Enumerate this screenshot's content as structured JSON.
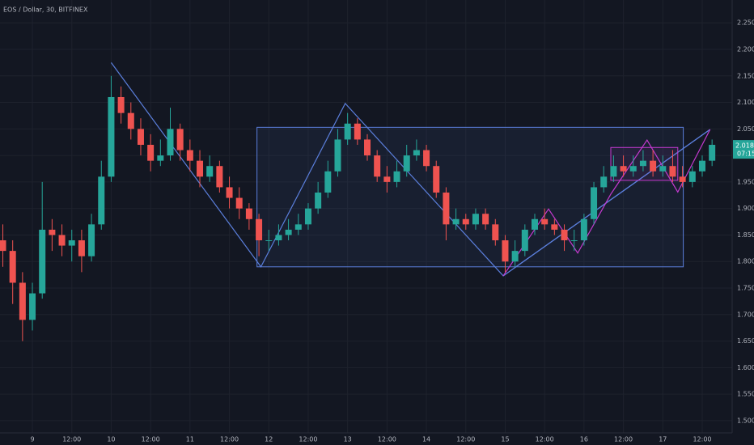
{
  "chart_data": {
    "type": "candlestick",
    "title": "EOS / Dollar, 30, BITFINEX",
    "x": [
      8.625,
      8.75,
      8.875,
      9.0,
      9.125,
      9.25,
      9.375,
      9.5,
      9.625,
      9.75,
      9.875,
      10.0,
      10.125,
      10.25,
      10.375,
      10.5,
      10.625,
      10.75,
      10.875,
      11.0,
      11.125,
      11.25,
      11.375,
      11.5,
      11.625,
      11.75,
      11.875,
      12.0,
      12.125,
      12.25,
      12.375,
      12.5,
      12.625,
      12.75,
      12.875,
      13.0,
      13.125,
      13.25,
      13.375,
      13.5,
      13.625,
      13.75,
      13.875,
      14.0,
      14.125,
      14.25,
      14.375,
      14.5,
      14.625,
      14.75,
      14.875,
      15.0,
      15.125,
      15.25,
      15.375,
      15.5,
      15.625,
      15.75,
      15.875,
      16.0,
      16.125,
      16.25,
      16.375,
      16.5,
      16.625,
      16.75,
      16.875,
      17.0,
      17.125,
      17.25,
      17.375,
      17.5,
      17.625
    ],
    "open": [
      1.84,
      1.82,
      1.76,
      1.69,
      1.74,
      1.86,
      1.85,
      1.83,
      1.84,
      1.81,
      1.87,
      1.96,
      2.11,
      2.08,
      2.05,
      2.02,
      1.99,
      2.0,
      2.05,
      2.01,
      1.99,
      1.96,
      1.98,
      1.94,
      1.92,
      1.9,
      1.88,
      1.84,
      1.84,
      1.85,
      1.86,
      1.87,
      1.9,
      1.93,
      1.97,
      2.03,
      2.06,
      2.03,
      2.0,
      1.96,
      1.95,
      1.97,
      2.0,
      2.01,
      1.98,
      1.93,
      1.87,
      1.88,
      1.87,
      1.89,
      1.87,
      1.84,
      1.8,
      1.82,
      1.86,
      1.88,
      1.87,
      1.86,
      1.84,
      1.84,
      1.88,
      1.94,
      1.96,
      1.98,
      1.97,
      1.98,
      1.99,
      1.97,
      1.98,
      1.96,
      1.95,
      1.97,
      1.99
    ],
    "high": [
      1.87,
      1.84,
      1.78,
      1.76,
      1.95,
      1.88,
      1.87,
      1.86,
      1.86,
      1.89,
      1.99,
      2.15,
      2.13,
      2.1,
      2.07,
      2.04,
      2.03,
      2.09,
      2.06,
      2.03,
      2.01,
      2.0,
      1.99,
      1.96,
      1.94,
      1.91,
      1.89,
      1.86,
      1.87,
      1.88,
      1.89,
      1.91,
      1.95,
      1.99,
      2.05,
      2.08,
      2.07,
      2.04,
      2.01,
      1.98,
      1.99,
      2.02,
      2.03,
      2.02,
      1.99,
      1.94,
      1.9,
      1.89,
      1.9,
      1.9,
      1.88,
      1.85,
      1.84,
      1.87,
      1.89,
      1.9,
      1.88,
      1.87,
      1.86,
      1.89,
      1.95,
      1.98,
      2.0,
      2.0,
      2.0,
      2.01,
      2.01,
      2.0,
      2.01,
      1.98,
      1.98,
      2.0,
      2.03
    ],
    "low": [
      1.79,
      1.72,
      1.65,
      1.67,
      1.73,
      1.82,
      1.81,
      1.8,
      1.78,
      1.8,
      1.86,
      1.95,
      2.06,
      2.03,
      2.0,
      1.97,
      1.98,
      1.99,
      1.99,
      1.97,
      1.94,
      1.95,
      1.93,
      1.9,
      1.88,
      1.86,
      1.81,
      1.82,
      1.83,
      1.84,
      1.85,
      1.86,
      1.89,
      1.92,
      1.96,
      2.02,
      2.02,
      1.99,
      1.95,
      1.93,
      1.94,
      1.96,
      1.99,
      1.97,
      1.92,
      1.84,
      1.86,
      1.86,
      1.86,
      1.86,
      1.83,
      1.78,
      1.79,
      1.81,
      1.85,
      1.86,
      1.85,
      1.82,
      1.82,
      1.83,
      1.87,
      1.93,
      1.95,
      1.96,
      1.96,
      1.97,
      1.96,
      1.96,
      1.95,
      1.94,
      1.94,
      1.96,
      1.98
    ],
    "close": [
      1.82,
      1.76,
      1.69,
      1.74,
      1.86,
      1.85,
      1.83,
      1.84,
      1.81,
      1.87,
      1.96,
      2.11,
      2.08,
      2.05,
      2.02,
      1.99,
      2.0,
      2.05,
      2.01,
      1.99,
      1.96,
      1.98,
      1.94,
      1.92,
      1.9,
      1.88,
      1.84,
      1.84,
      1.85,
      1.86,
      1.87,
      1.9,
      1.93,
      1.97,
      2.03,
      2.06,
      2.03,
      2.0,
      1.96,
      1.95,
      1.97,
      2.0,
      2.01,
      1.98,
      1.93,
      1.87,
      1.88,
      1.87,
      1.89,
      1.87,
      1.84,
      1.8,
      1.82,
      1.86,
      1.88,
      1.87,
      1.86,
      1.84,
      1.84,
      1.88,
      1.94,
      1.96,
      1.98,
      1.97,
      1.98,
      1.99,
      1.97,
      1.98,
      1.96,
      1.95,
      1.97,
      1.99,
      2.02
    ],
    "up_color": "#26a69a",
    "down_color": "#ef5350",
    "xlim": [
      8.589,
      17.88
    ],
    "ylim": [
      1.477,
      2.293
    ],
    "xticks": [
      {
        "value": 9,
        "label": "9"
      },
      {
        "value": 9.5,
        "label": "12:00"
      },
      {
        "value": 10,
        "label": "10"
      },
      {
        "value": 10.5,
        "label": "12:00"
      },
      {
        "value": 11,
        "label": "11"
      },
      {
        "value": 11.5,
        "label": "12:00"
      },
      {
        "value": 12,
        "label": "12"
      },
      {
        "value": 12.5,
        "label": "12:00"
      },
      {
        "value": 13,
        "label": "13"
      },
      {
        "value": 13.5,
        "label": "12:00"
      },
      {
        "value": 14,
        "label": "14"
      },
      {
        "value": 14.5,
        "label": "12:00"
      },
      {
        "value": 15,
        "label": "15"
      },
      {
        "value": 15.5,
        "label": "12:00"
      },
      {
        "value": 16,
        "label": "16"
      },
      {
        "value": 16.5,
        "label": "12:00"
      },
      {
        "value": 17,
        "label": "17"
      },
      {
        "value": 17.5,
        "label": "12:00"
      }
    ],
    "yticks": [
      {
        "value": 1.5,
        "label": "1.5000"
      },
      {
        "value": 1.55,
        "label": "1.5500"
      },
      {
        "value": 1.6,
        "label": "1.6000"
      },
      {
        "value": 1.65,
        "label": "1.6500"
      },
      {
        "value": 1.7,
        "label": "1.7000"
      },
      {
        "value": 1.75,
        "label": "1.7500"
      },
      {
        "value": 1.8,
        "label": "1.8000"
      },
      {
        "value": 1.85,
        "label": "1.8500"
      },
      {
        "value": 1.9,
        "label": "1.9000"
      },
      {
        "value": 1.95,
        "label": "1.9500"
      },
      {
        "value": 2.0,
        "label": "2.0000"
      },
      {
        "value": 2.05,
        "label": "2.0500"
      },
      {
        "value": 2.1,
        "label": "2.1000"
      },
      {
        "value": 2.15,
        "label": "2.1500"
      },
      {
        "value": 2.2,
        "label": "2.2000"
      },
      {
        "value": 2.25,
        "label": "2.2500"
      }
    ],
    "grid": true,
    "last_price": 2.0183,
    "countdown": "07:15",
    "drawings": [
      {
        "kind": "rect",
        "color": "#5b7fdc",
        "points": [
          [
            11.85,
            2.053
          ],
          [
            17.26,
            1.79
          ]
        ]
      },
      {
        "kind": "polyline",
        "color": "#5b7fdc",
        "points": [
          [
            10.0,
            2.175
          ],
          [
            11.9,
            1.79
          ],
          [
            12.97,
            2.098
          ],
          [
            14.975,
            1.773
          ],
          [
            17.6,
            2.049
          ]
        ]
      },
      {
        "kind": "polyline",
        "color": "#5b7fdc",
        "points": [
          [
            14.975,
            1.773
          ],
          [
            17.6,
            2.049
          ]
        ]
      },
      {
        "kind": "rect",
        "color": "#c43ad0",
        "points": [
          [
            16.34,
            2.015
          ],
          [
            17.19,
            1.953
          ]
        ]
      },
      {
        "kind": "polyline",
        "color": "#c43ad0",
        "points": [
          [
            14.975,
            1.773
          ],
          [
            15.55,
            1.899
          ],
          [
            15.92,
            1.816
          ],
          [
            16.34,
            1.927
          ],
          [
            16.8,
            2.029
          ],
          [
            17.19,
            1.931
          ],
          [
            17.6,
            2.049
          ]
        ]
      }
    ]
  }
}
